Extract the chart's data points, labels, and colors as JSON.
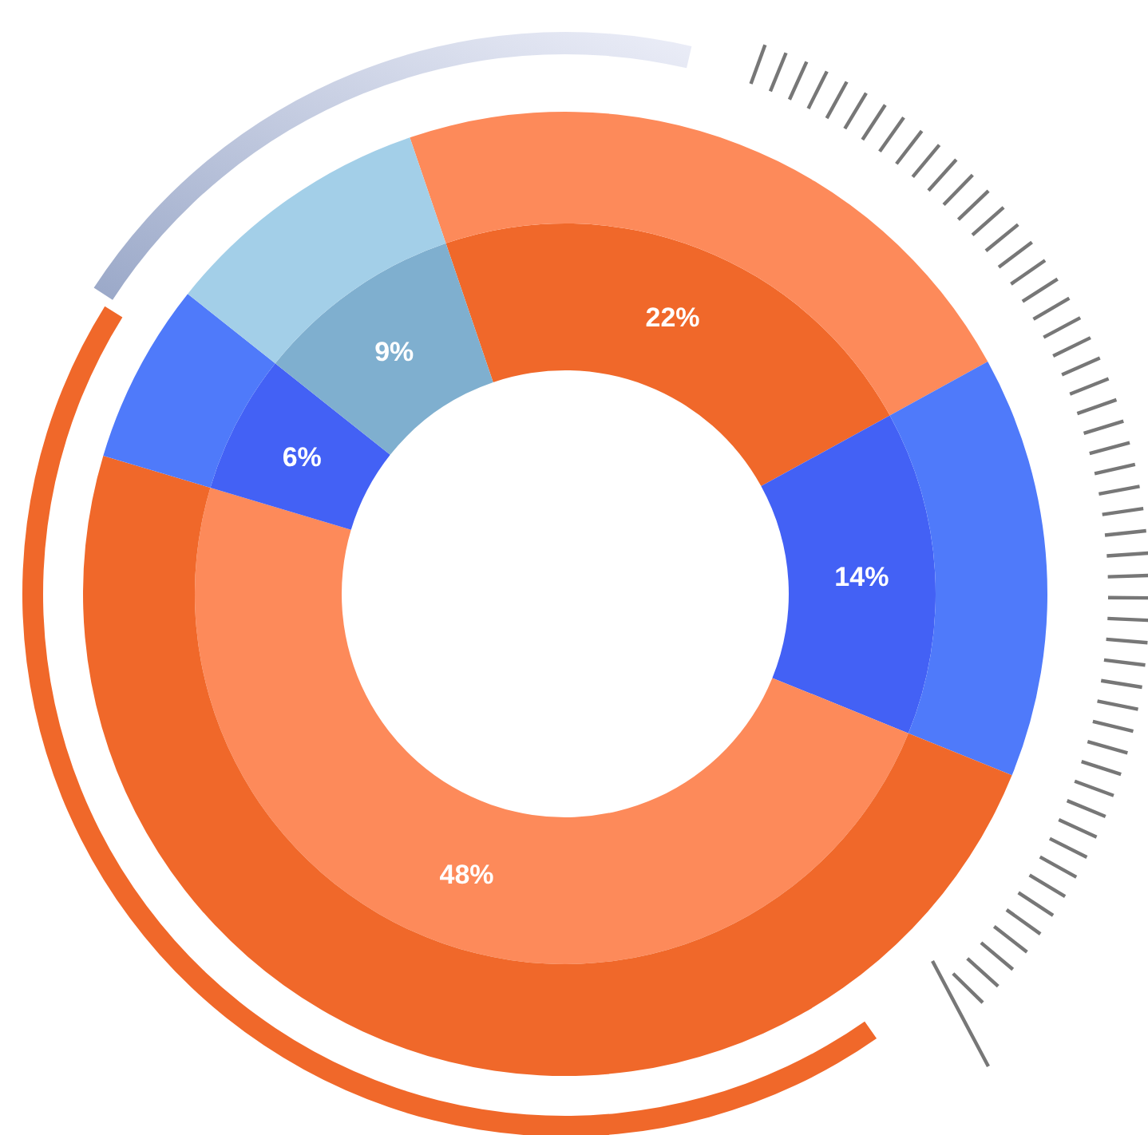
{
  "chart_data": {
    "type": "donut",
    "categories": [
      null,
      null,
      null,
      null,
      null
    ],
    "series": [
      {
        "values": [
          22,
          14,
          48,
          6,
          9
        ],
        "colors": [
          "#f0682a",
          "#4361f5",
          "#fd8a5a",
          "#4361f5",
          "#7fafcf"
        ],
        "value_labels": [
          "22%",
          "14%",
          "48%",
          "6%",
          "9%"
        ]
      },
      {
        "values": [
          22,
          14,
          48,
          6,
          9
        ],
        "colors": [
          "#fd8a5a",
          "#4f7afa",
          "#f0682a",
          "#4f7afa",
          "#a3cfe8"
        ]
      }
    ]
  }
}
